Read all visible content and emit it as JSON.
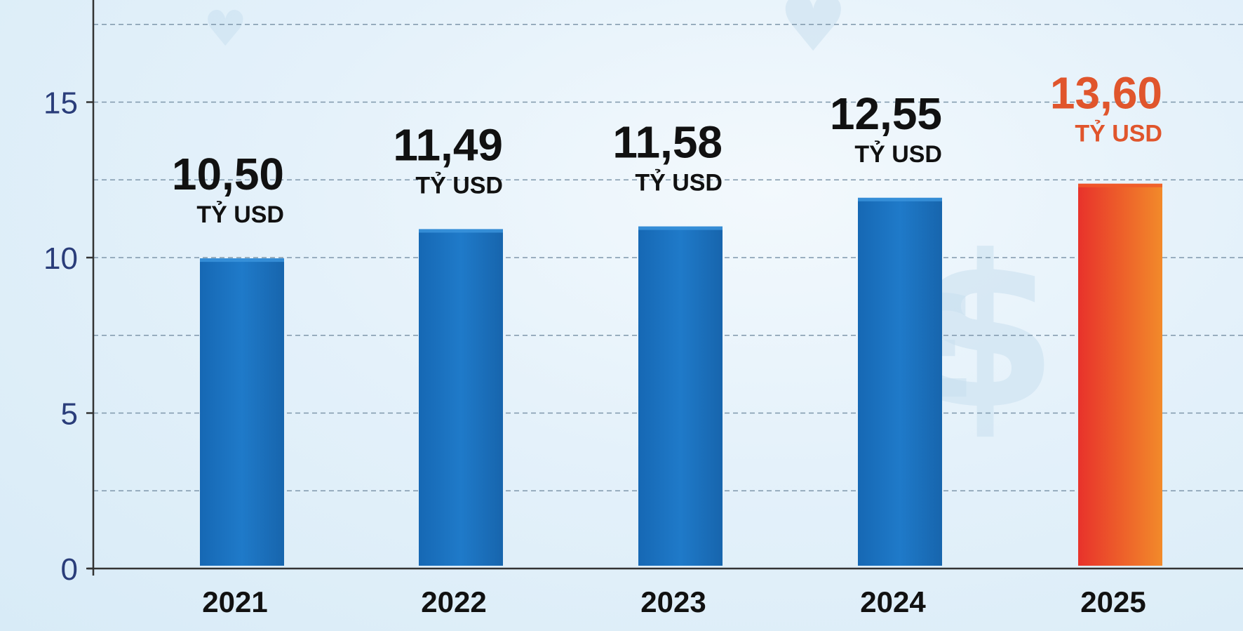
{
  "chart_data": {
    "type": "bar",
    "categories": [
      "2021",
      "2022",
      "2023",
      "2024",
      "2025"
    ],
    "values": [
      10.5,
      11.49,
      11.58,
      12.55,
      13.6
    ],
    "value_labels": [
      "10,50",
      "11,49",
      "11,58",
      "12,55",
      "13,60"
    ],
    "unit_label": "TỶ USD",
    "title": "",
    "xlabel": "",
    "ylabel": "",
    "ylim": [
      0,
      18
    ],
    "yticks": [
      0,
      5,
      10,
      15
    ],
    "grid": true,
    "colors": {
      "bar": "#1f7ac9",
      "highlight_bar_start": "#e8322b",
      "highlight_bar_end": "#f28a2a",
      "highlight_label": "#e0552c",
      "label": "#111111",
      "axis": "#333333",
      "tick_label": "#2a3d7a",
      "grid": "#7f97ab"
    },
    "highlight_index": 4
  }
}
